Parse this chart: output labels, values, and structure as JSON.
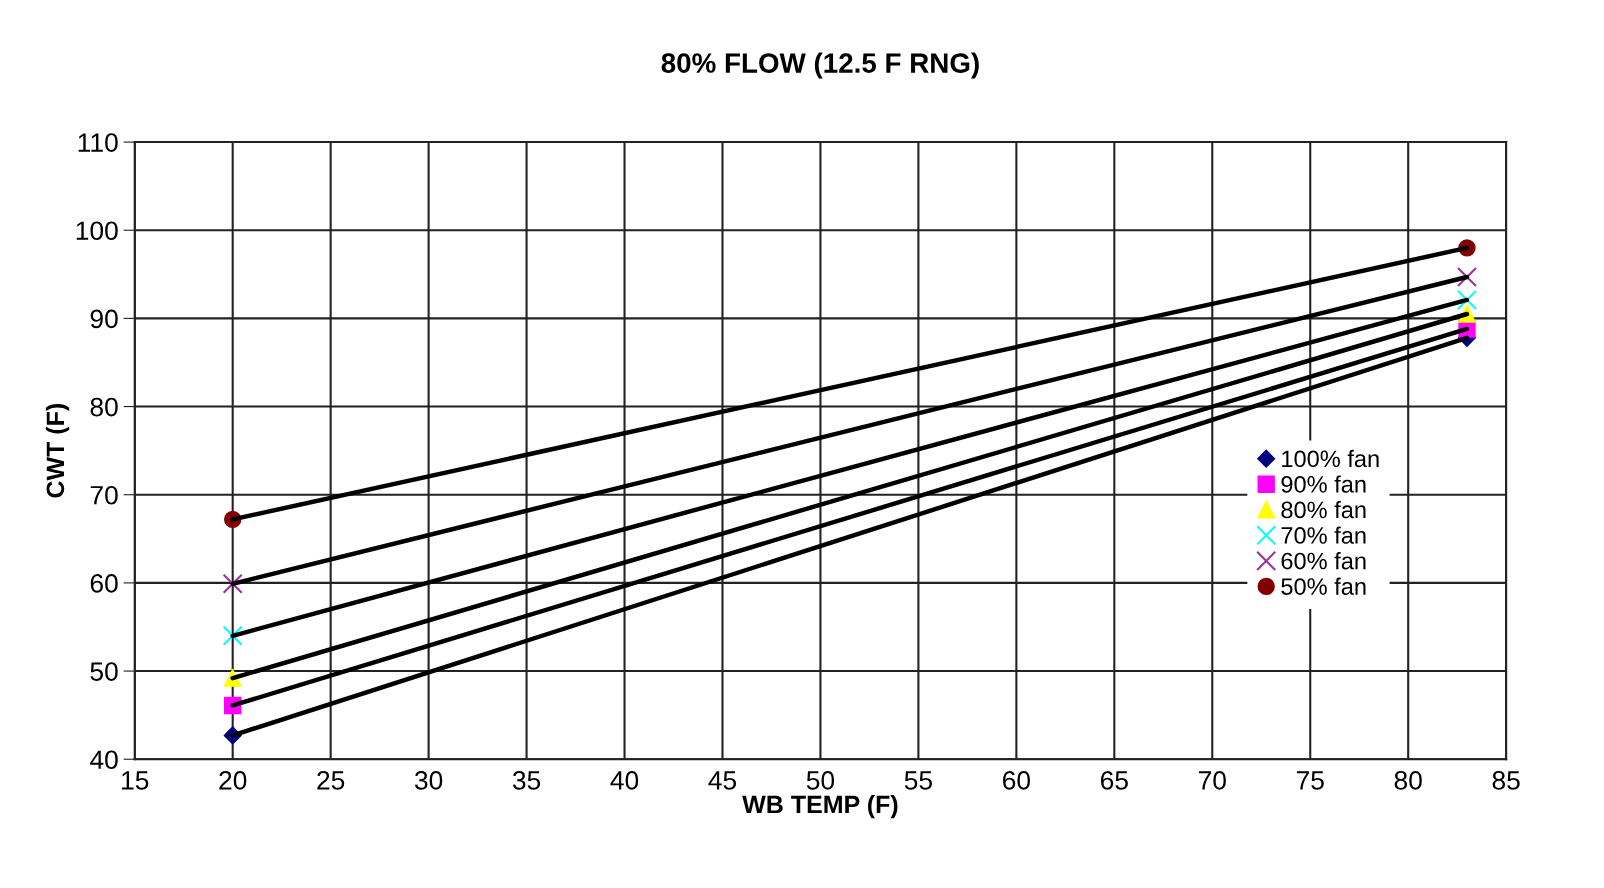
{
  "chart_data": {
    "type": "line",
    "title": "80% FLOW (12.5 F RNG)",
    "xlabel": "WB TEMP (F)",
    "ylabel": "CWT (F)",
    "x": [
      20,
      83
    ],
    "series": [
      {
        "name": "100% fan",
        "color": "#000080",
        "marker": "diamond",
        "values": [
          42.7,
          87.8
        ]
      },
      {
        "name": "90% fan",
        "color": "#ff00ff",
        "marker": "square",
        "values": [
          46.1,
          88.8
        ]
      },
      {
        "name": "80% fan",
        "color": "#ffff00",
        "marker": "triangle",
        "values": [
          49.2,
          90.5
        ]
      },
      {
        "name": "70% fan",
        "color": "#00ffff",
        "marker": "cross",
        "values": [
          54.0,
          92.1
        ]
      },
      {
        "name": "60% fan",
        "color": "#993399",
        "marker": "cross",
        "values": [
          59.9,
          94.7
        ]
      },
      {
        "name": "50% fan",
        "color": "#800000",
        "marker": "circle",
        "values": [
          67.2,
          98.0
        ]
      }
    ],
    "xlim": [
      15,
      85
    ],
    "xticks": [
      15,
      20,
      25,
      30,
      35,
      40,
      45,
      50,
      55,
      60,
      65,
      70,
      75,
      80,
      85
    ],
    "ylim": [
      40,
      110
    ],
    "yticks": [
      40,
      50,
      60,
      70,
      80,
      90,
      100,
      110
    ],
    "grid": true,
    "legend": "right",
    "line_style": "solid"
  }
}
